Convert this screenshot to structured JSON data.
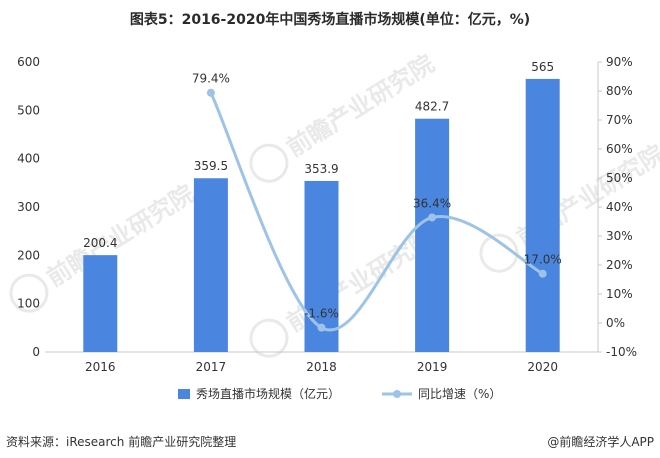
{
  "title": "图表5：2016-2020年中国秀场直播市场规模(单位：亿元，%)",
  "footer": {
    "source": "资料来源：iResearch 前瞻产业研究院整理",
    "brand": "@前瞻经济学人APP"
  },
  "watermark": "前瞻产业研究院",
  "colors": {
    "bar": "#4a86e0",
    "line": "#9dc3e6"
  },
  "chart_data": {
    "type": "bar",
    "categories": [
      "2016",
      "2017",
      "2018",
      "2019",
      "2020"
    ],
    "series": [
      {
        "name": "秀场直播市场规模（亿元）",
        "type": "bar",
        "axis": "left",
        "values": [
          200.4,
          359.5,
          353.9,
          482.7,
          565
        ],
        "labels": [
          "200.4",
          "359.5",
          "353.9",
          "482.7",
          "565"
        ]
      },
      {
        "name": "同比增速（%）",
        "type": "line",
        "axis": "right",
        "values": [
          null,
          79.4,
          -1.6,
          36.4,
          17.0
        ],
        "labels": [
          "",
          "79.4%",
          "-1.6%",
          "36.4%",
          "17.0%"
        ]
      }
    ],
    "y_left": {
      "min": 0,
      "max": 600,
      "ticks": [
        "0",
        "100",
        "200",
        "300",
        "400",
        "500",
        "600"
      ]
    },
    "y_right": {
      "min": -10,
      "max": 90,
      "ticks": [
        "-10%",
        "0%",
        "10%",
        "20%",
        "30%",
        "40%",
        "50%",
        "60%",
        "70%",
        "80%",
        "90%"
      ]
    },
    "grid": false,
    "legend_position": "bottom"
  }
}
